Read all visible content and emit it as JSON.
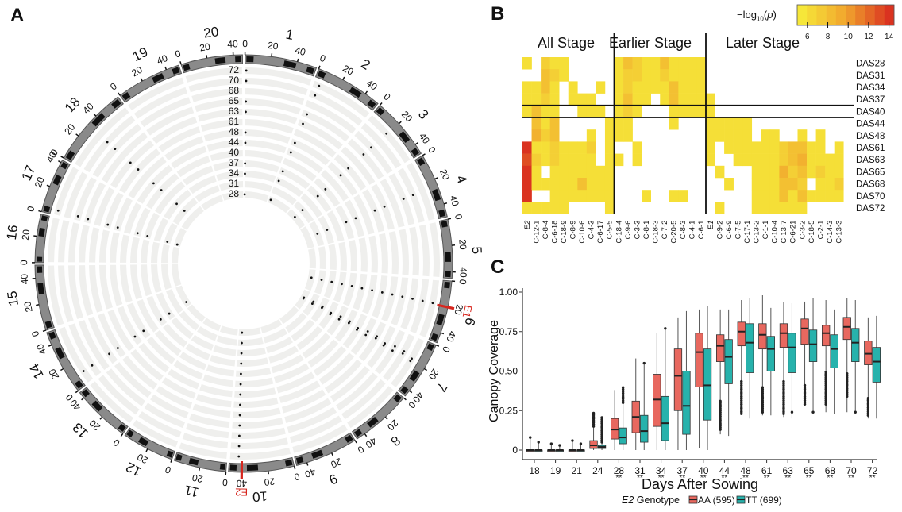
{
  "panels": {
    "a": "A",
    "b": "B",
    "c": "C"
  },
  "chart_data": [
    {
      "type": "circos",
      "panel": "A",
      "chromosomes": [
        {
          "name": "1",
          "length": 55,
          "ticks": [
            0,
            20,
            40
          ]
        },
        {
          "name": "2",
          "length": 52,
          "ticks": [
            0,
            20,
            40
          ]
        },
        {
          "name": "3",
          "length": 48,
          "ticks": [
            0,
            20,
            40
          ]
        },
        {
          "name": "4",
          "length": 50,
          "ticks": [
            0,
            20,
            40
          ]
        },
        {
          "name": "5",
          "length": 45,
          "ticks": [
            0,
            20,
            40
          ]
        },
        {
          "name": "6",
          "length": 48,
          "ticks": [
            0,
            20,
            40
          ]
        },
        {
          "name": "7",
          "length": 45,
          "ticks": [
            0,
            20,
            40
          ]
        },
        {
          "name": "8",
          "length": 47,
          "ticks": [
            0,
            20,
            40
          ]
        },
        {
          "name": "9",
          "length": 48,
          "ticks": [
            0,
            20,
            40
          ]
        },
        {
          "name": "10",
          "length": 50,
          "ticks": [
            0,
            20,
            40
          ]
        },
        {
          "name": "11",
          "length": 40,
          "ticks": [
            0,
            20
          ]
        },
        {
          "name": "12",
          "length": 40,
          "ticks": [
            0,
            20
          ]
        },
        {
          "name": "13",
          "length": 45,
          "ticks": [
            0,
            20,
            40
          ]
        },
        {
          "name": "14",
          "length": 50,
          "ticks": [
            0,
            20,
            40
          ]
        },
        {
          "name": "15",
          "length": 50,
          "ticks": [
            0,
            20,
            40
          ]
        },
        {
          "name": "16",
          "length": 37,
          "ticks": [
            0,
            20
          ]
        },
        {
          "name": "17",
          "length": 42,
          "ticks": [
            0,
            20,
            40
          ]
        },
        {
          "name": "18",
          "length": 62,
          "ticks": [
            0,
            20,
            40
          ]
        },
        {
          "name": "19",
          "length": 50,
          "ticks": [
            0,
            20,
            40
          ]
        },
        {
          "name": "20",
          "length": 47,
          "ticks": [
            0,
            20,
            40
          ]
        }
      ],
      "tracks": [
        "72",
        "70",
        "68",
        "65",
        "63",
        "61",
        "48",
        "44",
        "40",
        "37",
        "34",
        "31",
        "28"
      ],
      "markers": [
        {
          "label": "E1",
          "chromosome": "6",
          "position": 20,
          "color": "#d7261e"
        },
        {
          "label": "E2",
          "chromosome": "10",
          "position": 40,
          "color": "#d7261e"
        }
      ],
      "highlight_color": "#d7261e",
      "track_color": "#efefed",
      "ideogram_colors": {
        "band": "#8a8a8a",
        "dark": "#111111"
      }
    },
    {
      "type": "heatmap",
      "panel": "B",
      "legend_title": "−log10(p)",
      "legend_ticks": [
        6,
        8,
        10,
        12,
        14
      ],
      "color_range": [
        5,
        14.5
      ],
      "color_low": "#f6ee3a",
      "color_high": "#d7261e",
      "groups": [
        {
          "label": "All Stage",
          "columns": 10
        },
        {
          "label": "Earlier Stage",
          "columns": 10
        },
        {
          "label": "Later Stage",
          "columns": 15
        }
      ],
      "columns": [
        "E2",
        "C-12-1",
        "C-8-4",
        "C-6-18",
        "C-18-9",
        "C-8-9",
        "C-10-6",
        "C-4-3",
        "C-6-17",
        "C-5-5",
        "C-18-4",
        "C-9-6",
        "C-3-3",
        "C-8-1",
        "C-18-3",
        "C-7-2",
        "C-20-5",
        "C-8-3",
        "C-4-1",
        "C-6-1",
        "E1",
        "C-9-2",
        "C-6-9",
        "C-7-5",
        "C-17-1",
        "C-13-2",
        "C-1-1",
        "C-10-4",
        "C-13-7",
        "C-6-21",
        "C-3-2",
        "C-18-5",
        "C-2-1",
        "C-14-3",
        "C-13-3"
      ],
      "italic_columns": [
        "E2",
        "E1"
      ],
      "rows": [
        "DAS28",
        "DAS31",
        "DAS34",
        "DAS37",
        "DAS40",
        "DAS44",
        "DAS48",
        "DAS61",
        "DAS63",
        "DAS65",
        "DAS68",
        "DAS70",
        "DAS72"
      ],
      "row_separators_after": [
        "DAS37",
        "DAS40"
      ],
      "values": [
        [
          6,
          0,
          7,
          6,
          6,
          0,
          0,
          0,
          0,
          0,
          6,
          8,
          7,
          6,
          6,
          8,
          6,
          6,
          6,
          6,
          0,
          0,
          0,
          0,
          0,
          0,
          0,
          0,
          0,
          0,
          0,
          0,
          0,
          0,
          0
        ],
        [
          0,
          0,
          8,
          7,
          6,
          0,
          0,
          0,
          0,
          0,
          6,
          7,
          7,
          6,
          6,
          7,
          6,
          6,
          6,
          6,
          0,
          0,
          0,
          0,
          0,
          0,
          0,
          0,
          0,
          0,
          0,
          0,
          0,
          0,
          0
        ],
        [
          6,
          6,
          8,
          6,
          0,
          6,
          0,
          0,
          6,
          0,
          6,
          7,
          6,
          6,
          6,
          6,
          8,
          6,
          6,
          6,
          0,
          0,
          0,
          0,
          0,
          0,
          0,
          0,
          0,
          0,
          0,
          0,
          0,
          0,
          0
        ],
        [
          6,
          6,
          7,
          6,
          0,
          6,
          6,
          6,
          0,
          0,
          6,
          8,
          6,
          6,
          0,
          6,
          8,
          6,
          6,
          6,
          6,
          0,
          0,
          0,
          0,
          0,
          0,
          0,
          0,
          0,
          0,
          0,
          0,
          0,
          0
        ],
        [
          6,
          8,
          6,
          6,
          0,
          0,
          6,
          6,
          6,
          0,
          6,
          7,
          6,
          0,
          0,
          0,
          6,
          6,
          6,
          6,
          6,
          0,
          0,
          0,
          0,
          0,
          0,
          0,
          0,
          0,
          0,
          0,
          0,
          0,
          0
        ],
        [
          0,
          8,
          6,
          8,
          0,
          0,
          0,
          0,
          0,
          6,
          6,
          6,
          0,
          0,
          0,
          0,
          6,
          0,
          0,
          0,
          6,
          6,
          6,
          6,
          6,
          0,
          0,
          0,
          0,
          0,
          0,
          0,
          0,
          0,
          0
        ],
        [
          0,
          9,
          7,
          8,
          0,
          0,
          0,
          6,
          0,
          6,
          6,
          6,
          0,
          0,
          0,
          0,
          0,
          0,
          0,
          0,
          6,
          6,
          6,
          6,
          6,
          0,
          6,
          6,
          0,
          0,
          6,
          0,
          6,
          0,
          0
        ],
        [
          14,
          6,
          6,
          7,
          6,
          6,
          6,
          7,
          0,
          6,
          0,
          0,
          6,
          0,
          0,
          0,
          0,
          0,
          0,
          0,
          6,
          0,
          6,
          6,
          6,
          6,
          6,
          6,
          7,
          8,
          8,
          6,
          6,
          0,
          6
        ],
        [
          13,
          7,
          6,
          7,
          6,
          6,
          6,
          6,
          0,
          6,
          6,
          0,
          6,
          0,
          0,
          0,
          0,
          0,
          0,
          0,
          6,
          0,
          0,
          6,
          6,
          6,
          6,
          6,
          7,
          8,
          9,
          6,
          6,
          6,
          6
        ],
        [
          14,
          6,
          0,
          6,
          6,
          6,
          6,
          6,
          6,
          6,
          0,
          0,
          0,
          0,
          0,
          0,
          0,
          0,
          0,
          0,
          0,
          6,
          0,
          0,
          0,
          6,
          6,
          6,
          9,
          7,
          8,
          6,
          7,
          6,
          6
        ],
        [
          14,
          6,
          6,
          6,
          6,
          6,
          8,
          6,
          6,
          6,
          0,
          0,
          0,
          0,
          0,
          0,
          0,
          0,
          0,
          0,
          0,
          0,
          6,
          0,
          0,
          6,
          6,
          6,
          8,
          8,
          7,
          0,
          6,
          6,
          7
        ],
        [
          14,
          0,
          0,
          6,
          6,
          6,
          6,
          6,
          6,
          6,
          0,
          0,
          0,
          6,
          0,
          0,
          6,
          6,
          0,
          0,
          0,
          0,
          0,
          0,
          0,
          6,
          6,
          6,
          8,
          6,
          8,
          6,
          6,
          6,
          6
        ],
        [
          6,
          6,
          6,
          6,
          6,
          0,
          0,
          0,
          0,
          6,
          0,
          0,
          0,
          0,
          0,
          0,
          0,
          0,
          0,
          0,
          0,
          6,
          0,
          0,
          0,
          6,
          6,
          6,
          6,
          6,
          6,
          0,
          0,
          0,
          0
        ]
      ]
    },
    {
      "type": "box",
      "panel": "C",
      "xlabel": "Days After Sowing",
      "ylabel": "Canopy Coverage",
      "ylim": [
        0,
        1.0
      ],
      "yticks": [
        "0",
        "0.25",
        "0.50",
        "0.75",
        "1.00"
      ],
      "ytick_values": [
        0,
        0.25,
        0.5,
        0.75,
        1.0
      ],
      "categories": [
        "18",
        "19",
        "21",
        "24",
        "28",
        "31",
        "34",
        "37",
        "40",
        "44",
        "48",
        "61",
        "63",
        "65",
        "68",
        "70",
        "72"
      ],
      "significance": [
        "",
        "",
        "",
        "",
        "**",
        "**",
        "**",
        "**",
        "**",
        "**",
        "**",
        "**",
        "**",
        "**",
        "**",
        "**",
        "**"
      ],
      "legend": {
        "title_italic": "E2",
        "title_rest": " Genotype",
        "placement": "bottom"
      },
      "series": [
        {
          "name": "AA (595)",
          "color": "#e8685f",
          "q1": [
            0,
            0,
            0,
            0.01,
            0.07,
            0.11,
            0.15,
            0.25,
            0.4,
            0.56,
            0.66,
            0.64,
            0.65,
            0.67,
            0.66,
            0.7,
            0.54
          ],
          "median": [
            0,
            0,
            0,
            0.03,
            0.13,
            0.21,
            0.32,
            0.47,
            0.62,
            0.66,
            0.75,
            0.73,
            0.74,
            0.77,
            0.74,
            0.78,
            0.61
          ],
          "q3": [
            0,
            0,
            0,
            0.06,
            0.2,
            0.31,
            0.48,
            0.64,
            0.74,
            0.73,
            0.81,
            0.8,
            0.8,
            0.83,
            0.79,
            0.84,
            0.69
          ],
          "whisker_low": [
            0,
            0,
            0,
            0,
            0,
            0,
            0,
            0,
            0.01,
            0.1,
            0.23,
            0.22,
            0.21,
            0.3,
            0.24,
            0.24,
            0.2
          ],
          "whisker_high": [
            0.08,
            0.04,
            0.06,
            0.15,
            0.38,
            0.58,
            0.74,
            0.84,
            0.89,
            0.89,
            0.95,
            0.98,
            0.94,
            0.94,
            0.95,
            0.96,
            0.84
          ],
          "outliers_high_to": [
            0.08,
            0.04,
            0.06,
            0.24,
            0,
            0,
            0,
            0,
            0,
            0,
            0,
            0,
            0,
            0,
            0,
            0,
            0
          ],
          "outliers_low_from": [
            null,
            null,
            null,
            null,
            null,
            null,
            null,
            null,
            null,
            0.31,
            0.44,
            0.4,
            0.44,
            0.42,
            0.5,
            0.49,
            0.33
          ],
          "outliers_low_to": [
            null,
            null,
            null,
            null,
            null,
            null,
            null,
            null,
            null,
            0.13,
            0.23,
            0.24,
            0.23,
            0.29,
            0.29,
            0.34,
            0.22
          ]
        },
        {
          "name": "TT (699)",
          "color": "#27b2ac",
          "q1": [
            0,
            0,
            0,
            0.01,
            0.04,
            0.05,
            0.06,
            0.1,
            0.19,
            0.42,
            0.49,
            0.5,
            0.49,
            0.56,
            0.52,
            0.56,
            0.43
          ],
          "median": [
            0,
            0,
            0,
            0.02,
            0.08,
            0.12,
            0.17,
            0.28,
            0.41,
            0.59,
            0.68,
            0.64,
            0.65,
            0.67,
            0.64,
            0.68,
            0.56
          ],
          "q3": [
            0,
            0,
            0,
            0.03,
            0.14,
            0.22,
            0.34,
            0.5,
            0.64,
            0.7,
            0.8,
            0.72,
            0.74,
            0.76,
            0.73,
            0.77,
            0.65
          ],
          "whisker_low": [
            0,
            0,
            0,
            0,
            0,
            0,
            0,
            0,
            0,
            0.09,
            0.2,
            0.22,
            0.2,
            0.24,
            0.23,
            0.24,
            0.2
          ],
          "whisker_high": [
            0.05,
            0.03,
            0.04,
            0.05,
            0.3,
            0.55,
            0.77,
            0.88,
            0.91,
            0.89,
            0.96,
            0.9,
            0.93,
            0.96,
            0.89,
            0.95,
            0.85
          ],
          "outliers_high_to": [
            0.05,
            0.03,
            0.04,
            0.21,
            0.4,
            0.56,
            0.77,
            0,
            0,
            0,
            0,
            0,
            0,
            0,
            0,
            0,
            0
          ],
          "outliers_low_from": [
            null,
            null,
            null,
            null,
            null,
            null,
            null,
            null,
            null,
            null,
            null,
            null,
            null,
            null,
            null,
            null,
            null
          ],
          "outliers_low_to": [
            null,
            null,
            null,
            null,
            null,
            null,
            null,
            null,
            null,
            null,
            null,
            null,
            0.24,
            0.24,
            null,
            0.24,
            null
          ]
        }
      ]
    }
  ]
}
